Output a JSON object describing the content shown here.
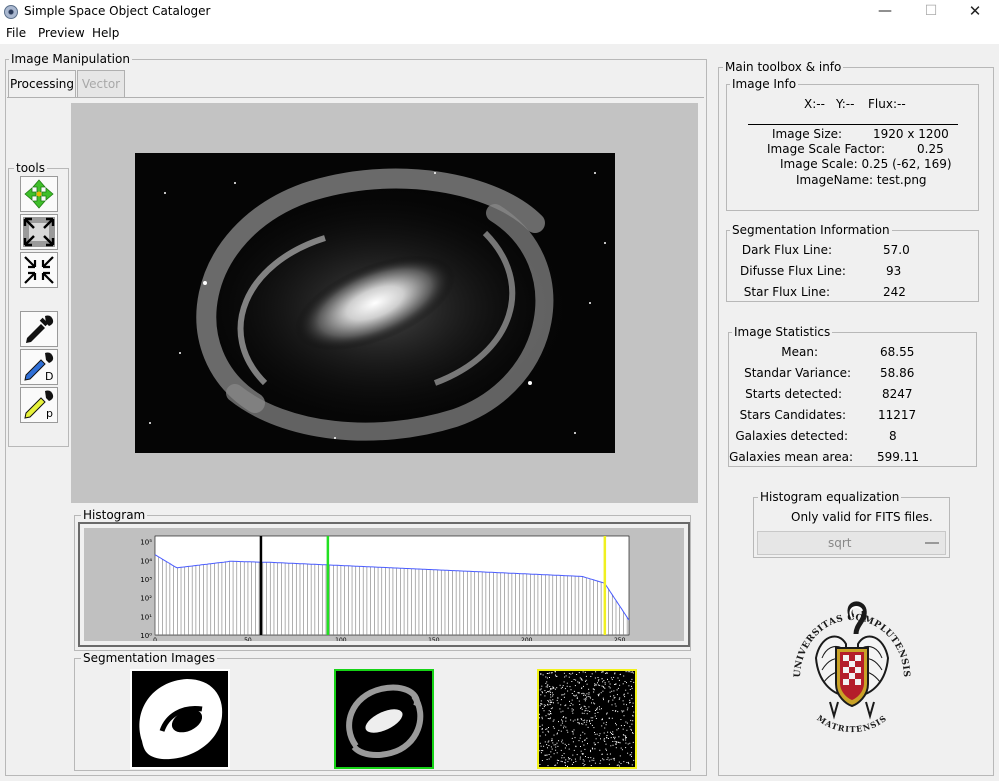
{
  "window": {
    "title": "Simple Space Object Cataloger",
    "controls": {
      "minimize": "—",
      "maximize": "☐",
      "close": "✕"
    }
  },
  "menu": [
    "File",
    "Preview",
    "Help"
  ],
  "image_manipulation": {
    "label": "Image Manipulation",
    "tabs": [
      {
        "label": "Processing",
        "active": true
      },
      {
        "label": "Vector",
        "enabled": false
      }
    ],
    "tools_label": "tools",
    "tools": [
      {
        "name": "move-icon"
      },
      {
        "name": "expand-icon"
      },
      {
        "name": "shrink-icon"
      },
      {
        "name": "eyedropper-icon"
      },
      {
        "name": "eyedropper-dark-icon",
        "letter": "D",
        "color": "#2f6fd6"
      },
      {
        "name": "eyedropper-p-icon",
        "letter": "p",
        "color": "#e7f23a"
      }
    ]
  },
  "histogram": {
    "label": "Histogram",
    "y_ticks": [
      "10⁵",
      "10⁴",
      "10³",
      "10²",
      "10¹",
      "10⁰"
    ],
    "x_ticks": [
      "0",
      "50",
      "100",
      "150",
      "200",
      "250"
    ],
    "lines": [
      {
        "name": "dark",
        "value": 57,
        "color": "#000000"
      },
      {
        "name": "diffuse",
        "value": 93,
        "color": "#22e022"
      },
      {
        "name": "star",
        "value": 242,
        "color": "#f0f020"
      }
    ]
  },
  "segmentation_images": {
    "label": "Segmentation Images",
    "thumb_borders": [
      "#ffffff",
      "#16d316",
      "#f2f21a"
    ]
  },
  "toolbox": {
    "label": "Main toolbox & info",
    "image_info": {
      "label": "Image Info",
      "x": "X:--",
      "y": "Y:--",
      "flux": "Flux:--",
      "size_label": "Image Size:",
      "size": "1920 x 1200",
      "scale_factor_label": "Image Scale Factor:",
      "scale_factor": "0.25",
      "scale_label": "Image Scale: 0.25  (-62, 169)",
      "name_label": "ImageName: test.png"
    },
    "segmentation": {
      "label": "Segmentation Information",
      "rows": [
        {
          "label": "Dark Flux Line:",
          "value": "57.0"
        },
        {
          "label": "Difusse Flux Line:",
          "value": "93"
        },
        {
          "label": "Star Flux Line:",
          "value": "242"
        }
      ]
    },
    "statistics": {
      "label": "Image Statistics",
      "rows": [
        {
          "label": "Mean:",
          "value": "68.55"
        },
        {
          "label": "Standar Variance:",
          "value": "58.86"
        },
        {
          "label": "Starts detected:",
          "value": "8247"
        },
        {
          "label": "Stars Candidates:",
          "value": "11217"
        },
        {
          "label": "Galaxies detected:",
          "value": "8"
        },
        {
          "label": "Galaxies mean area:",
          "value": "599.11"
        }
      ]
    },
    "histogram_equalization": {
      "label": "Histogram equalization",
      "note": "Only valid for FITS files.",
      "selected": "sqrt"
    },
    "logo": {
      "top_text": "UNIVERSITAS COMPLUTENSIS",
      "bottom_text": "MATRITENSIS",
      "colors": {
        "ink": "#1a1a1a",
        "gold": "#c9a227",
        "red": "#b41e2a"
      }
    }
  }
}
